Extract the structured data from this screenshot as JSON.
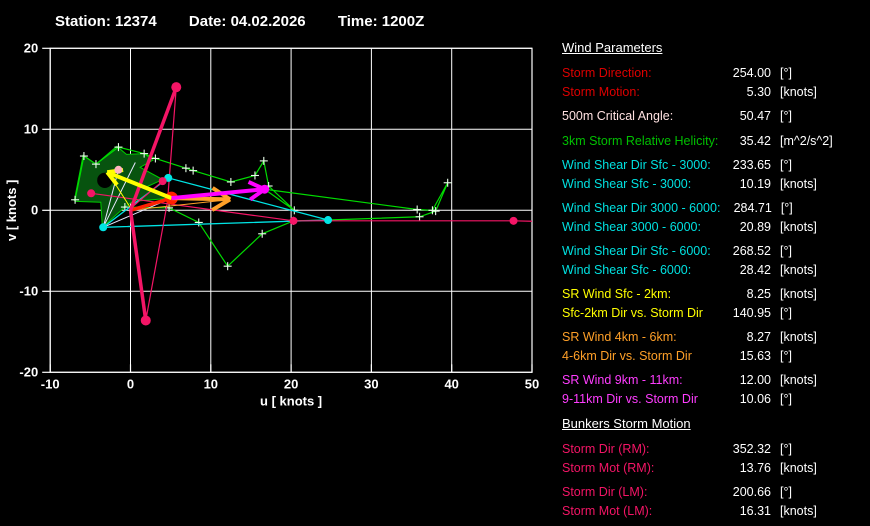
{
  "header": {
    "station_label": "Station:",
    "station": "12374",
    "date_label": "Date:",
    "date": "04.02.2026",
    "time_label": "Time:",
    "time": "1200Z"
  },
  "plot": {
    "xlabel": "u  [ knots ]",
    "ylabel": "v  [ knots ]",
    "x_ticks": [
      -10,
      0,
      10,
      20,
      30,
      40,
      50
    ],
    "y_ticks": [
      -20,
      -10,
      0,
      10,
      20
    ],
    "xlim": [
      -10,
      50
    ],
    "ylim": [
      -20,
      20
    ],
    "grid_color": "#ffffff"
  },
  "chart_data": {
    "type": "line",
    "title": "Hodograph (u-v wind components)",
    "xlabel": "u [knots]",
    "ylabel": "v [knots]",
    "xlim": [
      -10,
      50
    ],
    "ylim": [
      -20,
      20
    ],
    "grid": true,
    "fill_polygon": {
      "name": "hodograph-shaded-area",
      "color_fill": "#07530f",
      "color_stroke": "#00cc00",
      "points": [
        [
          -7.0,
          1.2
        ],
        [
          -5.9,
          6.8
        ],
        [
          -4.3,
          5.7
        ],
        [
          -1.7,
          7.9
        ],
        [
          -0.5,
          6.9
        ],
        [
          1.7,
          7.0
        ],
        [
          2.8,
          6.2
        ],
        [
          1.2,
          5.3
        ],
        [
          4.0,
          3.8
        ],
        [
          1.8,
          2.8
        ],
        [
          5.1,
          1.5
        ],
        [
          0.3,
          1.1
        ],
        [
          -0.7,
          0.4
        ],
        [
          -3.5,
          -2.1
        ],
        [
          -3.7,
          1.0
        ],
        [
          -6.8,
          1.1
        ]
      ],
      "hole_circle": {
        "x": -3.2,
        "y": 3.7,
        "r": 0.95
      }
    },
    "series": [
      {
        "name": "hodograph-trace",
        "color": "#00dc00",
        "width": 1.2,
        "marker": "plus",
        "marker_color": "#eaffea",
        "points": [
          [
            -6.9,
            1.3
          ],
          [
            -5.8,
            6.7
          ],
          [
            -4.3,
            5.7
          ],
          [
            -1.5,
            7.8
          ],
          [
            1.7,
            7.0
          ],
          [
            3.1,
            6.4
          ],
          [
            6.9,
            5.2
          ],
          [
            7.8,
            4.9
          ],
          [
            12.5,
            3.5
          ],
          [
            15.5,
            4.3
          ],
          [
            16.6,
            6.1
          ],
          [
            17.2,
            3.0
          ],
          [
            20.4,
            0.0
          ],
          [
            16.7,
            2.6
          ],
          [
            35.7,
            0.1
          ],
          [
            37.6,
            0.0
          ],
          [
            39.5,
            3.4
          ],
          [
            38.0,
            -0.1
          ],
          [
            36.0,
            -0.8
          ],
          [
            24.6,
            -1.2
          ],
          [
            20.3,
            -1.3
          ],
          [
            16.4,
            -2.9
          ],
          [
            12.1,
            -6.9
          ],
          [
            8.5,
            -1.5
          ],
          [
            4.8,
            0.3
          ],
          [
            -0.7,
            0.4
          ]
        ]
      },
      {
        "name": "cyan-trace",
        "color": "#00e5e5",
        "width": 1.3,
        "marker": null,
        "points": [
          [
            -3.4,
            -2.1
          ],
          [
            4.7,
            4.0
          ],
          [
            24.6,
            -1.2
          ],
          [
            -3.4,
            -2.1
          ]
        ]
      },
      {
        "name": "critical-angle-ray-1",
        "color": "#e6e6ff",
        "width": 1,
        "marker": null,
        "points": [
          [
            -1.5,
            5.0
          ],
          [
            -3.4,
            -2.1
          ],
          [
            0.6,
            5.9
          ]
        ]
      },
      {
        "name": "critical-angle-ray-2",
        "color": "#e6e6ff",
        "width": 1,
        "marker": null,
        "points": [
          [
            -3.4,
            -2.1
          ],
          [
            5.1,
            1.5
          ]
        ]
      },
      {
        "name": "bunkers-thin-lines",
        "color": "#f41566",
        "width": 1.2,
        "marker": null,
        "points": [
          [
            5.7,
            15.2
          ],
          [
            4.6,
            1.0
          ],
          [
            1.9,
            -13.6
          ]
        ]
      },
      {
        "name": "pink-long-line",
        "color": "#f41566",
        "width": 1.2,
        "marker": null,
        "points": [
          [
            -4.9,
            2.1
          ],
          [
            20.3,
            -1.3
          ],
          [
            47.7,
            -1.3
          ],
          [
            50.0,
            -1.35
          ]
        ]
      },
      {
        "name": "pink-short-line",
        "color": "#f41566",
        "width": 1.2,
        "marker": null,
        "points": [
          [
            0.2,
            0.4
          ],
          [
            4.0,
            3.6
          ]
        ]
      },
      {
        "name": "thin-yellow-line",
        "color": "#ffff00",
        "width": 1,
        "marker": null,
        "points": [
          [
            0.0,
            0.3
          ],
          [
            -2.7,
            4.5
          ]
        ]
      },
      {
        "name": "thin-orange-line",
        "color": "#ffa028",
        "width": 1,
        "marker": null,
        "points": [
          [
            0.0,
            0.0
          ],
          [
            12.2,
            1.3
          ]
        ]
      }
    ],
    "vectors": [
      {
        "name": "storm-motion-vector",
        "color": "#ff2000",
        "width": 3.5,
        "from": [
          0,
          0
        ],
        "to": [
          5.1,
          1.5
        ],
        "dot": 6.5,
        "barb_len": 0,
        "barb_ang": 0
      },
      {
        "name": "bunkers-lm-vector",
        "color": "#f41566",
        "width": 3.5,
        "from": [
          0,
          0
        ],
        "to": [
          5.7,
          15.2
        ],
        "dot": 5,
        "barb_len": 0,
        "barb_ang": 0
      },
      {
        "name": "bunkers-rm-vector",
        "color": "#f41566",
        "width": 3.5,
        "from": [
          0,
          0
        ],
        "to": [
          1.9,
          -13.6
        ],
        "dot": 5,
        "barb_len": 0,
        "barb_ang": 0
      },
      {
        "name": "sr-wind-sfc-2km-arrow",
        "color": "#ffff00",
        "width": 4,
        "from": [
          5.1,
          1.5
        ],
        "to": [
          -2.9,
          4.7
        ],
        "dot": 0,
        "barb_len": 2.0,
        "barb_ang": 30
      },
      {
        "name": "sr-wind-4-6km-arrow",
        "color": "#ffa028",
        "width": 4,
        "from": [
          5.1,
          1.5
        ],
        "to": [
          12.4,
          1.35
        ],
        "dot": 0,
        "barb_len": 2.6,
        "barb_ang": 32
      },
      {
        "name": "sr-wind-9-11km-arrow",
        "color": "#ff00ff",
        "width": 4,
        "from": [
          5.1,
          1.5
        ],
        "to": [
          16.7,
          2.6
        ],
        "dot": 4.5,
        "barb_len": 2.2,
        "barb_ang": 30
      }
    ],
    "dots": [
      {
        "name": "cyan-dot-sfc",
        "x": -3.4,
        "y": -2.1,
        "r": 4,
        "color": "#00e5e5"
      },
      {
        "name": "cyan-dot-mid",
        "x": 4.7,
        "y": 4.0,
        "r": 4,
        "color": "#00e5e5"
      },
      {
        "name": "cyan-dot-right",
        "x": 24.6,
        "y": -1.2,
        "r": 4,
        "color": "#00e5e5"
      },
      {
        "name": "pink-dot-left",
        "x": -4.9,
        "y": 2.1,
        "r": 4,
        "color": "#f41566"
      },
      {
        "name": "pink-dot-mid",
        "x": 20.3,
        "y": -1.3,
        "r": 4,
        "color": "#f41566"
      },
      {
        "name": "pink-dot-right",
        "x": 47.7,
        "y": -1.3,
        "r": 4,
        "color": "#f41566"
      },
      {
        "name": "pink-dot-upper",
        "x": 4.0,
        "y": 3.6,
        "r": 4,
        "color": "#f41566"
      },
      {
        "name": "lightpink-dot",
        "x": -1.5,
        "y": 5.0,
        "r": 4,
        "color": "#ffb6c1"
      }
    ]
  },
  "panel": {
    "sections": [
      {
        "heading": "Wind Parameters",
        "groups": [
          [
            {
              "label": "Storm Direction:",
              "value": "254.00",
              "unit": "[°]",
              "color": "#dd0000"
            },
            {
              "label": "Storm Motion:",
              "value": "5.30",
              "unit": "[knots]",
              "color": "#dd0000"
            }
          ],
          [
            {
              "label": "500m Critical Angle:",
              "value": "50.47",
              "unit": "[°]",
              "color": "#ffe1e1"
            }
          ],
          [
            {
              "label": "3km Storm Relative Helicity:",
              "value": "35.42",
              "unit": "[m^2/s^2]",
              "color": "#00c000"
            }
          ],
          [
            {
              "label": "Wind Shear Dir Sfc - 3000:",
              "value": "233.65",
              "unit": "[°]",
              "color": "#00e0e0"
            },
            {
              "label": "Wind Shear Sfc - 3000:",
              "value": "10.19",
              "unit": "[knots]",
              "color": "#00e0e0"
            }
          ],
          [
            {
              "label": "Wind Shear Dir 3000 - 6000:",
              "value": "284.71",
              "unit": "[°]",
              "color": "#00e0e0"
            },
            {
              "label": "Wind Shear 3000 - 6000:",
              "value": "20.89",
              "unit": "[knots]",
              "color": "#00e0e0"
            }
          ],
          [
            {
              "label": "Wind Shear Dir Sfc - 6000:",
              "value": "268.52",
              "unit": "[°]",
              "color": "#00e0e0"
            },
            {
              "label": "Wind Shear Sfc - 6000:",
              "value": "28.42",
              "unit": "[knots]",
              "color": "#00e0e0"
            }
          ],
          [
            {
              "label": "SR Wind Sfc - 2km:",
              "value": "8.25",
              "unit": "[knots]",
              "color": "#ffff00"
            },
            {
              "label": "Sfc-2km Dir vs. Storm Dir",
              "value": "140.95",
              "unit": "[°]",
              "color": "#ffff00"
            }
          ],
          [
            {
              "label": "SR Wind 4km - 6km:",
              "value": "8.27",
              "unit": "[knots]",
              "color": "#ffa028"
            },
            {
              "label": "4-6km Dir vs. Storm Dir",
              "value": "15.63",
              "unit": "[°]",
              "color": "#ffa028"
            }
          ],
          [
            {
              "label": "SR Wind 9km - 11km:",
              "value": "12.00",
              "unit": "[knots]",
              "color": "#ff3dff"
            },
            {
              "label": "9-11km Dir vs. Storm Dir",
              "value": "10.06",
              "unit": "[°]",
              "color": "#ff3dff"
            }
          ]
        ]
      },
      {
        "heading": "Bunkers Storm Motion",
        "groups": [
          [
            {
              "label": "Storm Dir (RM):",
              "value": "352.32",
              "unit": "[°]",
              "color": "#f41566"
            },
            {
              "label": "Storm Mot (RM):",
              "value": "13.76",
              "unit": "[knots]",
              "color": "#f41566"
            }
          ],
          [
            {
              "label": "Storm Dir (LM):",
              "value": "200.66",
              "unit": "[°]",
              "color": "#f41566"
            },
            {
              "label": "Storm Mot (LM):",
              "value": "16.31",
              "unit": "[knots]",
              "color": "#f41566"
            }
          ]
        ]
      }
    ]
  }
}
